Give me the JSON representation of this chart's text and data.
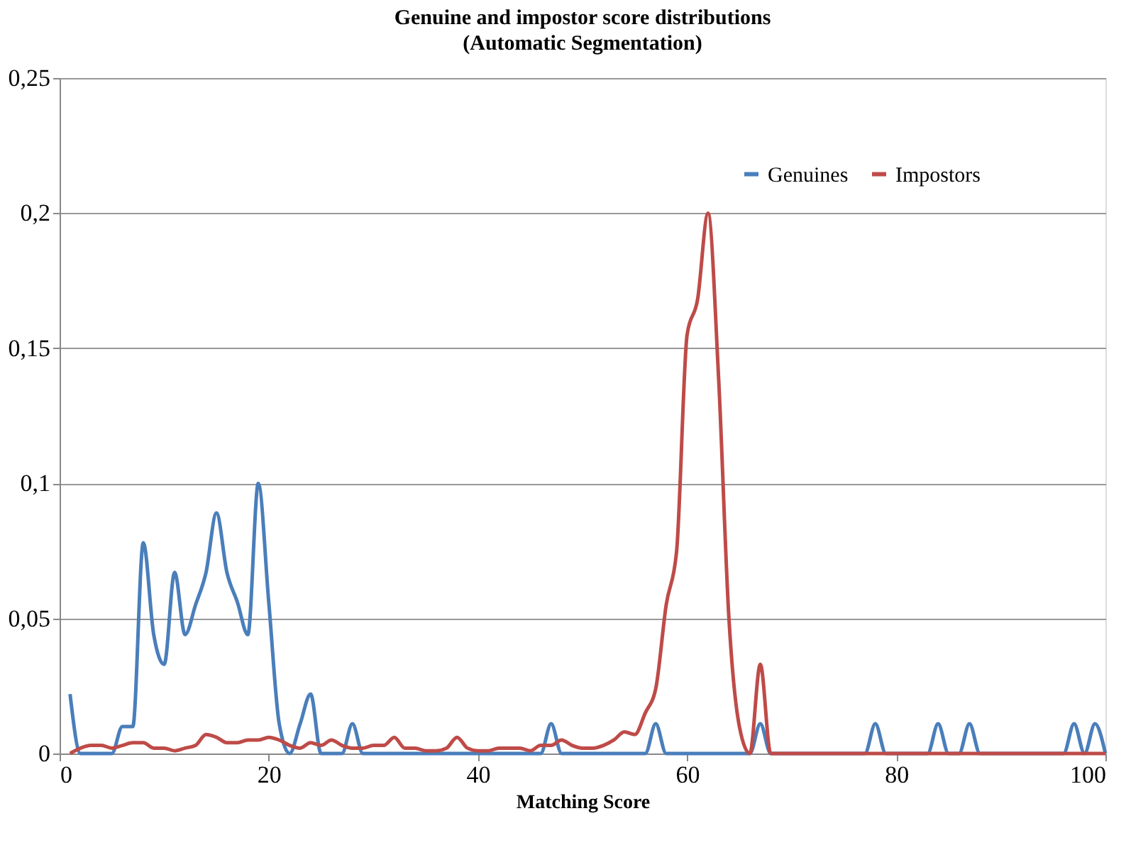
{
  "chart_data": {
    "type": "line",
    "title": "Genuine and impostor score distributions",
    "subtitle": "(Automatic Segmentation)",
    "xlabel": "Matching Score",
    "xlim": [
      0,
      100
    ],
    "xticks": [
      0,
      20,
      40,
      60,
      80,
      100
    ],
    "ylim": [
      0,
      0.25
    ],
    "yticks": [
      {
        "value": 0,
        "label": "0"
      },
      {
        "value": 0.05,
        "label": "0,05"
      },
      {
        "value": 0.1,
        "label": "0,1"
      },
      {
        "value": 0.15,
        "label": "0,15"
      },
      {
        "value": 0.2,
        "label": "0,2"
      },
      {
        "value": 0.25,
        "label": "0,25"
      }
    ],
    "grid": "y",
    "legend": "top right",
    "marker": "none",
    "line_style": "solid",
    "series": [
      {
        "name": "Genuines",
        "color": "#4a7ebb",
        "x": [
          1,
          2,
          3,
          4,
          5,
          6,
          7,
          8,
          9,
          10,
          11,
          12,
          13,
          14,
          15,
          16,
          17,
          18,
          19,
          20,
          21,
          22,
          23,
          24,
          25,
          26,
          27,
          28,
          29,
          30,
          46,
          47,
          48,
          56,
          57,
          58,
          66,
          67,
          68,
          77,
          78,
          79,
          83,
          84,
          85,
          86,
          87,
          88,
          96,
          97,
          98,
          99,
          100
        ],
        "values": [
          0.022,
          0,
          0,
          0,
          0,
          0.01,
          0.01,
          0.078,
          0.044,
          0.033,
          0.067,
          0.044,
          0.055,
          0.067,
          0.089,
          0.067,
          0.056,
          0.044,
          0.1,
          0.056,
          0.011,
          0,
          0.011,
          0.022,
          0,
          0,
          0,
          0.011,
          0,
          0,
          0,
          0.011,
          0,
          0,
          0.011,
          0,
          0,
          0.011,
          0,
          0,
          0.011,
          0,
          0,
          0.011,
          0,
          0,
          0.011,
          0,
          0,
          0.011,
          0,
          0.011,
          0
        ]
      },
      {
        "name": "Impostors",
        "color": "#be4b48",
        "x": [
          1,
          2,
          3,
          4,
          5,
          6,
          7,
          8,
          9,
          10,
          11,
          12,
          13,
          14,
          15,
          16,
          17,
          18,
          19,
          20,
          21,
          22,
          23,
          24,
          25,
          26,
          27,
          28,
          29,
          30,
          31,
          32,
          33,
          34,
          35,
          36,
          37,
          38,
          39,
          40,
          41,
          42,
          43,
          44,
          45,
          46,
          47,
          48,
          49,
          50,
          51,
          52,
          53,
          54,
          55,
          56,
          57,
          58,
          59,
          60,
          61,
          62,
          63,
          64,
          65,
          66,
          67,
          68,
          69,
          100
        ],
        "values": [
          0,
          0.002,
          0.003,
          0.003,
          0.002,
          0.003,
          0.004,
          0.004,
          0.002,
          0.002,
          0.001,
          0.002,
          0.003,
          0.007,
          0.006,
          0.004,
          0.004,
          0.005,
          0.005,
          0.006,
          0.005,
          0.003,
          0.002,
          0.004,
          0.003,
          0.005,
          0.003,
          0.002,
          0.002,
          0.003,
          0.003,
          0.006,
          0.002,
          0.002,
          0.001,
          0.001,
          0.002,
          0.006,
          0.002,
          0.001,
          0.001,
          0.002,
          0.002,
          0.002,
          0.001,
          0.003,
          0.003,
          0.005,
          0.003,
          0.002,
          0.002,
          0.003,
          0.005,
          0.008,
          0.007,
          0.015,
          0.024,
          0.055,
          0.075,
          0.155,
          0.168,
          0.2,
          0.14,
          0.05,
          0.01,
          0,
          0.033,
          0,
          0,
          0
        ]
      }
    ]
  }
}
